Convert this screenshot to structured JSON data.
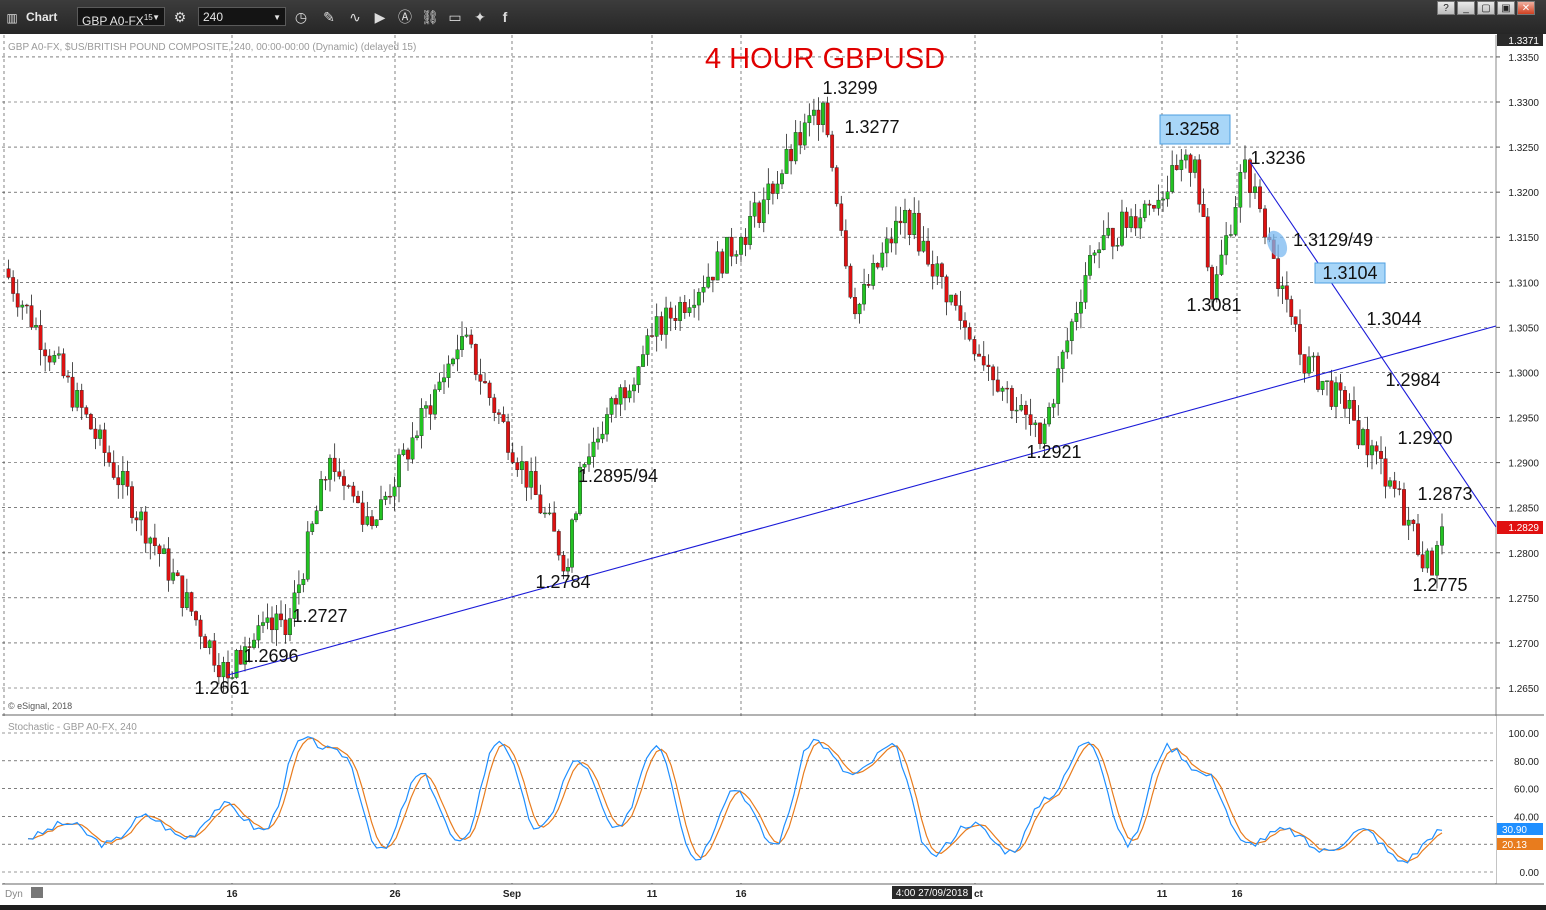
{
  "toolbar": {
    "title": "Chart",
    "symbol": "GBP A0-FX",
    "symbol_sup": "15",
    "interval": "240"
  },
  "main_chart": {
    "title": "4 HOUR GBPUSD",
    "info": "GBP A0-FX, $US/BRITISH POUND COMPOSITE, 240, 00:00-00:00 (Dynamic) (delayed 15)",
    "copyright": "© eSignal, 2018",
    "axis_top_label": "1.3371",
    "current_price_label": "1.2829",
    "price_ticks": [
      "1.3350",
      "1.3300",
      "1.3250",
      "1.3200",
      "1.3150",
      "1.3100",
      "1.3050",
      "1.3000",
      "1.2950",
      "1.2900",
      "1.2850",
      "1.2800",
      "1.2750",
      "1.2700",
      "1.2650"
    ]
  },
  "stoch_panel": {
    "title": "Stochastic - GBP A0-FX, 240",
    "ticks": [
      "100.00",
      "80.00",
      "60.00",
      "40.00",
      "20.00",
      "0.00"
    ],
    "k_label": "30.90",
    "d_label": "20.13",
    "k_color": "#1f8fff",
    "d_color": "#e87c1e"
  },
  "x_axis": {
    "labels": [
      "16",
      "26",
      "Sep",
      "11",
      "16",
      "11",
      "16"
    ],
    "crosshair_label": "4:00 27/09/2018",
    "partial_label": "ct",
    "dyn_label": "Dyn"
  },
  "chart_data": {
    "type": "candlestick",
    "title": "4 HOUR GBPUSD",
    "instrument": "GBP A0-FX",
    "interval": "240",
    "ylim": [
      1.2625,
      1.3371
    ],
    "x_labels": [
      "16",
      "26",
      "Sep",
      "11",
      "16",
      "11",
      "16"
    ],
    "colors": {
      "up": "#22c322",
      "down": "#dd1111",
      "trendline": "#1a1ad8",
      "annotation": "#e00000"
    },
    "price_path": [
      {
        "x": "start",
        "close": 1.3115
      },
      {
        "x": "16 (Aug)",
        "close": 1.2661
      },
      {
        "x": "17 Aug",
        "close": 1.2696
      },
      {
        "x": "17 Aug",
        "close": 1.2727
      },
      {
        "x": "22 Aug",
        "close": 1.2905
      },
      {
        "x": "26",
        "close": 1.283
      },
      {
        "x": "30 Aug",
        "close": 1.304
      },
      {
        "x": "5 Sep",
        "close": 1.2784
      },
      {
        "x": "6 Sep",
        "close": 1.2895
      },
      {
        "x": "11",
        "close": 1.304
      },
      {
        "x": "16",
        "close": 1.315
      },
      {
        "x": "20 Sep",
        "close": 1.3299
      },
      {
        "x": "21 Sep",
        "close": 1.3065
      },
      {
        "x": "25 Sep",
        "close": 1.318
      },
      {
        "x": "27 Sep",
        "close": 1.305
      },
      {
        "x": "3 Oct",
        "close": 1.2921
      },
      {
        "x": "8 Oct",
        "close": 1.313
      },
      {
        "x": "11",
        "close": 1.3236
      },
      {
        "x": "15 Oct",
        "close": 1.3081
      },
      {
        "x": "16",
        "close": 1.3236
      },
      {
        "x": "19 Oct",
        "close": 1.315
      },
      {
        "x": "22 Oct",
        "close": 1.302
      },
      {
        "x": "24 Oct",
        "close": 1.296
      },
      {
        "x": "26 Oct",
        "close": 1.288
      },
      {
        "x": "30 Oct",
        "close": 1.2775
      },
      {
        "x": "last",
        "close": 1.2829
      }
    ],
    "annotations": [
      {
        "label": "1.3299",
        "x": "20 Sep",
        "y": 1.3299
      },
      {
        "label": "1.3277",
        "x": "21 Sep",
        "y": 1.3277
      },
      {
        "label": "1.3258",
        "x": "12 Oct",
        "y": 1.3258,
        "boxed": true
      },
      {
        "label": "1.3236",
        "x": "17 Oct",
        "y": 1.3236
      },
      {
        "label": "1.3129/49",
        "x": "18 Oct",
        "y": 1.3149
      },
      {
        "label": "1.3104",
        "x": "22 Oct",
        "y": 1.3104,
        "boxed": true
      },
      {
        "label": "1.3081",
        "x": "15 Oct",
        "y": 1.3081
      },
      {
        "label": "1.3044",
        "x": "23 Oct",
        "y": 1.3044
      },
      {
        "label": "1.2984",
        "x": "24 Oct",
        "y": 1.2984
      },
      {
        "label": "1.2920",
        "x": "25 Oct",
        "y": 1.292
      },
      {
        "label": "1.2873",
        "x": "29 Oct",
        "y": 1.2873
      },
      {
        "label": "1.2775",
        "x": "30 Oct",
        "y": 1.2775
      },
      {
        "label": "1.2921",
        "x": "3 Oct",
        "y": 1.2921
      },
      {
        "label": "1.2895/94",
        "x": "6 Sep",
        "y": 1.2895
      },
      {
        "label": "1.2784",
        "x": "5 Sep",
        "y": 1.2784
      },
      {
        "label": "1.2727",
        "x": "17 Aug",
        "y": 1.2727
      },
      {
        "label": "1.2696",
        "x": "16 Aug",
        "y": 1.2696
      },
      {
        "label": "1.2661",
        "x": "15 Aug",
        "y": 1.2661
      }
    ],
    "trendlines": [
      {
        "name": "rising support",
        "from": {
          "x": "15 Aug",
          "y": 1.2661
        },
        "to": {
          "x": "right edge",
          "y": 1.3051
        }
      },
      {
        "name": "falling resistance",
        "from": {
          "x": "16 Oct",
          "y": 1.3236
        },
        "to": {
          "x": "right edge",
          "y": 1.283
        }
      }
    ],
    "stochastic": {
      "ylim": [
        0,
        100
      ],
      "levels": [
        100,
        80,
        60,
        40,
        20,
        0
      ],
      "k_last": 30.9,
      "d_last": 20.13,
      "k_path": [
        25,
        35,
        20,
        40,
        25,
        48,
        30,
        95,
        85,
        15,
        70,
        20,
        95,
        30,
        80,
        30,
        92,
        10,
        60,
        20,
        95,
        70,
        90,
        12,
        35,
        15,
        55,
        95,
        20,
        90,
        70,
        20,
        30,
        15,
        30,
        8,
        30
      ]
    }
  }
}
